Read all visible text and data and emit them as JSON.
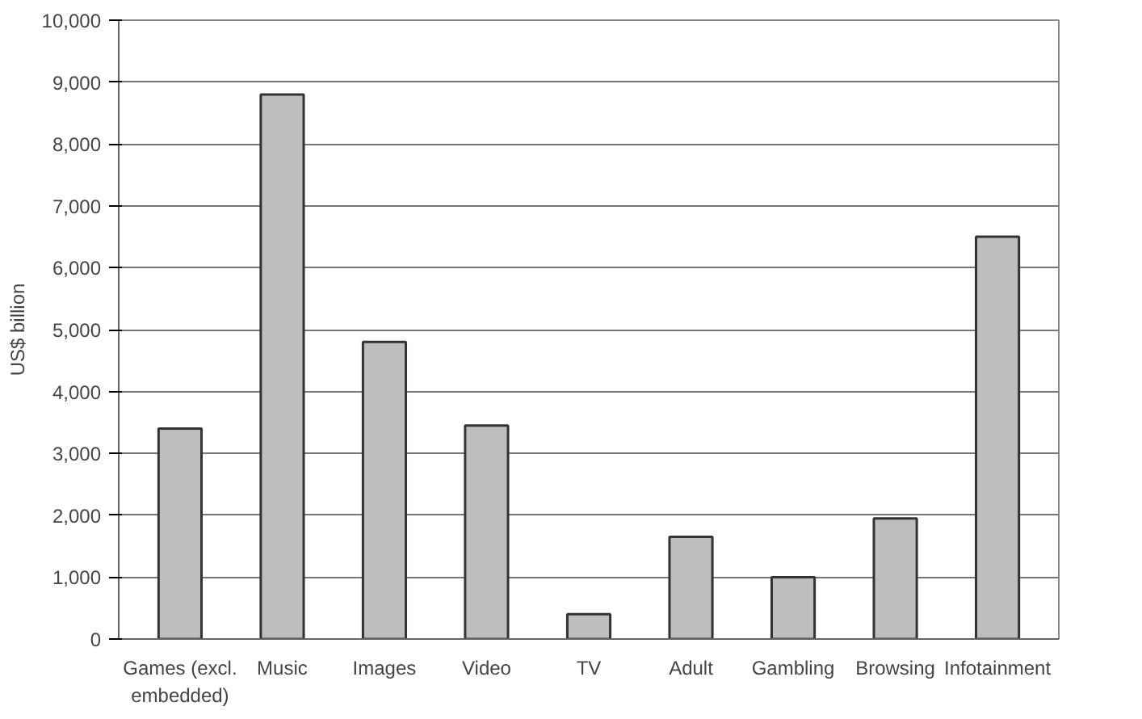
{
  "chart_data": {
    "type": "bar",
    "ylabel": "US$ billion",
    "categories": [
      "Games (excl.\nembedded)",
      "Music",
      "Images",
      "Video",
      "TV",
      "Adult",
      "Gambling",
      "Browsing",
      "Infotainment"
    ],
    "values": [
      3400,
      8800,
      4800,
      3450,
      400,
      1650,
      1000,
      1950,
      6500
    ],
    "color": "#bebebe",
    "ylim": [
      0,
      10000
    ],
    "yticks": [
      0,
      {
        "value": 1000,
        "label": "1,000"
      },
      {
        "value": 2000,
        "label": "2,000"
      },
      {
        "value": 3000,
        "label": "3,000"
      },
      {
        "value": 4000,
        "label": "4,000"
      },
      {
        "value": 5000,
        "label": "5,000"
      },
      {
        "value": 6000,
        "label": "6,000"
      },
      {
        "value": 7000,
        "label": "7,000"
      },
      {
        "value": 8000,
        "label": "8,000"
      },
      {
        "value": 9000,
        "label": "9,000"
      },
      {
        "value": 10000,
        "label": "10,000"
      }
    ],
    "grid": "y"
  }
}
